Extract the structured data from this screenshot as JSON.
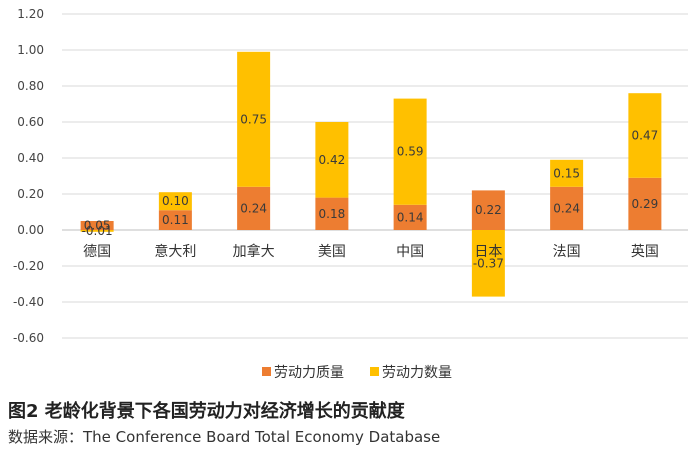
{
  "chart_data": {
    "type": "bar",
    "stacked": true,
    "categories": [
      "德国",
      "意大利",
      "加拿大",
      "美国",
      "中国",
      "日本",
      "法国",
      "英国"
    ],
    "series": [
      {
        "name": "劳动力质量",
        "color": "#ED7D31",
        "values": [
          0.05,
          0.11,
          0.24,
          0.18,
          0.14,
          0.22,
          0.24,
          0.29
        ],
        "labels": [
          "0.05",
          "0.11",
          "0.24",
          "0.18",
          "0.14",
          "0.22",
          "0.24",
          "0.29"
        ]
      },
      {
        "name": "劳动力数量",
        "color": "#FFC000",
        "values": [
          -0.01,
          0.1,
          0.75,
          0.42,
          0.59,
          -0.37,
          0.15,
          0.47
        ],
        "labels": [
          "-0.01",
          "0.10",
          "0.75",
          "0.42",
          "0.59",
          "-0.37",
          "0.15",
          "0.47"
        ]
      }
    ],
    "yticks": [
      "1.20",
      "1.00",
      "0.80",
      "0.60",
      "0.40",
      "0.20",
      "0.00",
      "-0.20",
      "-0.40",
      "-0.60"
    ],
    "ylim": [
      -0.6,
      1.2
    ],
    "grid": true,
    "legend_position": "bottom"
  },
  "figure": {
    "title": "图2 老龄化背景下各国劳动力对经济增长的贡献度",
    "source": "数据来源：The Conference Board Total Economy Database"
  }
}
